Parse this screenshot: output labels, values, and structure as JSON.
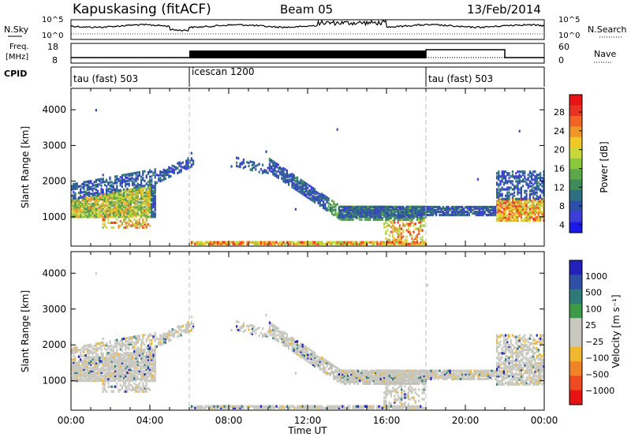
{
  "header": {
    "station": "Kapuskasing (fitACF)",
    "beam": "Beam 05",
    "date": "13/Feb/2014"
  },
  "status_panels": {
    "nsky_label": "N.Sky",
    "nsky_ticks": [
      "10^5",
      "10^0"
    ],
    "nsearch_label": "N.Search",
    "nsearch_ticks": [
      "10^5",
      "10^0"
    ],
    "freq_label_1": "Freq.",
    "freq_label_2": "[MHz]",
    "freq_ticks": [
      "18",
      "8"
    ],
    "nave_label": "Nave",
    "nave_ticks": [
      "60",
      "0"
    ],
    "cpid_label": "CPID",
    "modes": [
      {
        "label": "tau (fast) 503",
        "start_hr": 0
      },
      {
        "label": "icescan 1200",
        "start_hr": 6
      },
      {
        "label": "tau (fast) 503",
        "start_hr": 18
      }
    ]
  },
  "colors": {
    "power_scale": [
      "#1a1ae6",
      "#3c3cd6",
      "#2e4fa8",
      "#2f6f82",
      "#3f8a5a",
      "#5aa84a",
      "#8cc83c",
      "#c8d83c",
      "#f0c828",
      "#f09628",
      "#f06428",
      "#e83222",
      "#e61414"
    ],
    "velocity_scale": [
      "#2222bb",
      "#2f4fa5",
      "#2f7a78",
      "#3f9a48",
      "#c8c8c0",
      "#c8c8c0",
      "#f0b830",
      "#f08228",
      "#ee4a22",
      "#e61414"
    ],
    "vel_gray": "#c8c8c0",
    "ground_scatter": "#c0c0b8"
  },
  "chart_data": [
    {
      "type": "heatmap",
      "name": "power",
      "ylabel": "Slant Range [km]",
      "ylim": [
        180,
        4600
      ],
      "y_ticks": [
        1000,
        2000,
        3000,
        4000
      ],
      "x_ticks": [
        "00:00",
        "04:00",
        "08:00",
        "12:00",
        "16:00",
        "20:00",
        "00:00"
      ],
      "xlim_hours": [
        0,
        24
      ],
      "colorbar": {
        "label": "Power [dB]",
        "ticks": [
          "28",
          "24",
          "20",
          "16",
          "12",
          "8",
          "4"
        ],
        "range": [
          0,
          30
        ]
      },
      "mode_boundaries_hr": [
        6,
        18
      ]
    },
    {
      "type": "heatmap",
      "name": "velocity",
      "ylabel": "Slant Range [km]",
      "ylim": [
        180,
        4600
      ],
      "y_ticks": [
        1000,
        2000,
        3000,
        4000
      ],
      "x_ticks": [
        "00:00",
        "04:00",
        "08:00",
        "12:00",
        "16:00",
        "20:00",
        "00:00"
      ],
      "xlim_hours": [
        0,
        24
      ],
      "xlabel": "Time UT",
      "colorbar": {
        "label": "Velocity [m s⁻¹]",
        "ticks": [
          "1000",
          "500",
          "100",
          "25",
          "−25",
          "−100",
          "−500",
          "−1000"
        ]
      },
      "mode_boundaries_hr": [
        6,
        18
      ]
    }
  ]
}
